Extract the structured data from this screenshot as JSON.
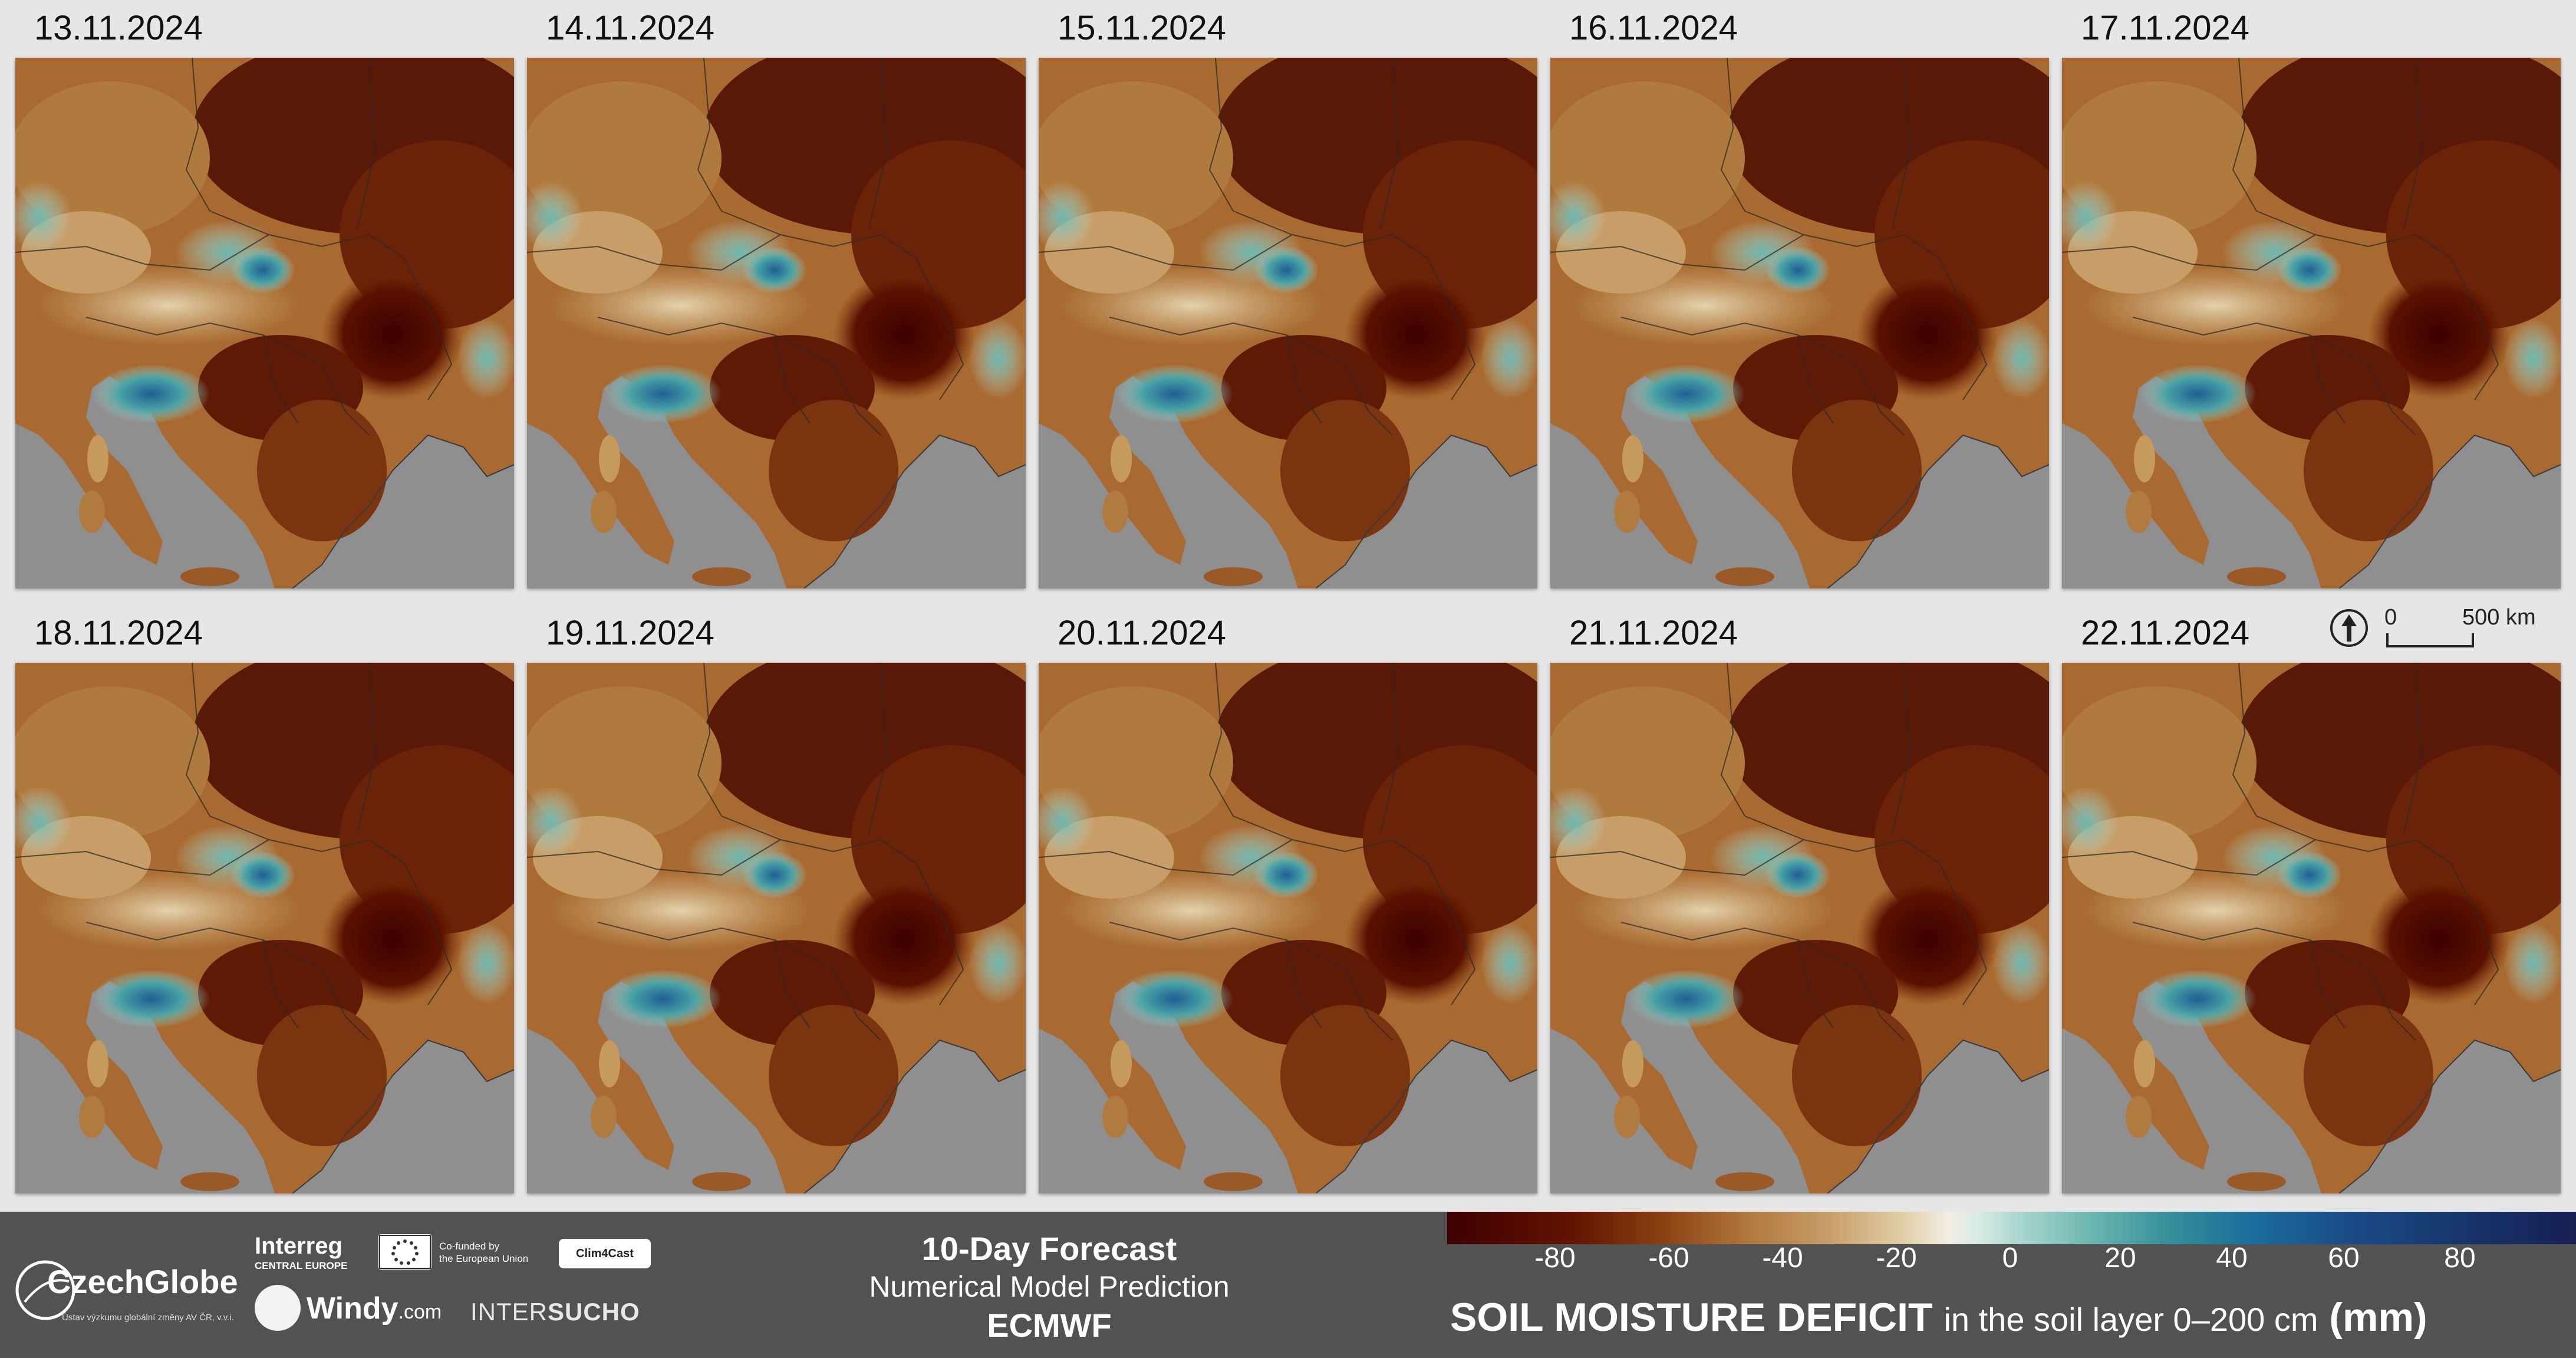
{
  "panels": [
    {
      "date": "13.11.2024"
    },
    {
      "date": "14.11.2024"
    },
    {
      "date": "15.11.2024"
    },
    {
      "date": "16.11.2024"
    },
    {
      "date": "17.11.2024"
    },
    {
      "date": "18.11.2024"
    },
    {
      "date": "19.11.2024"
    },
    {
      "date": "20.11.2024"
    },
    {
      "date": "21.11.2024"
    },
    {
      "date": "22.11.2024"
    }
  ],
  "scale": {
    "zero": "0",
    "distance": "500 km"
  },
  "footer": {
    "czechglobe": {
      "name": "CzechGlobe",
      "subtitle": "Ústav výzkumu globální změny AV ČR, v.v.i."
    },
    "interreg": {
      "name": "Interreg",
      "sub": "CENTRAL EUROPE"
    },
    "eu": {
      "line1": "Co-funded by",
      "line2": "the European Union"
    },
    "clim4cast": "Clim4Cast",
    "windy": {
      "name": "Windy",
      "suffix": ".com"
    },
    "intersucho": {
      "part1": "INTER",
      "part2": "SUCHO"
    },
    "forecast_title": "10-Day Forecast",
    "forecast_subtitle": "Numerical Model Prediction",
    "forecast_model": "ECMWF"
  },
  "legend": {
    "ticks": [
      "-80",
      "-60",
      "-40",
      "-20",
      "0",
      "20",
      "40",
      "60",
      "80"
    ],
    "title_bold": "SOIL MOISTURE DEFICIT",
    "title_mid": "in the soil layer 0–200 cm",
    "title_unit": "(mm)"
  },
  "colors": {
    "background": "#e6e6e6",
    "sea": "#8f8f8f",
    "footer": "#525252",
    "deficit_extreme": "#3d0000",
    "neutral": "#f2ede3",
    "surplus_extreme": "#161f52"
  }
}
